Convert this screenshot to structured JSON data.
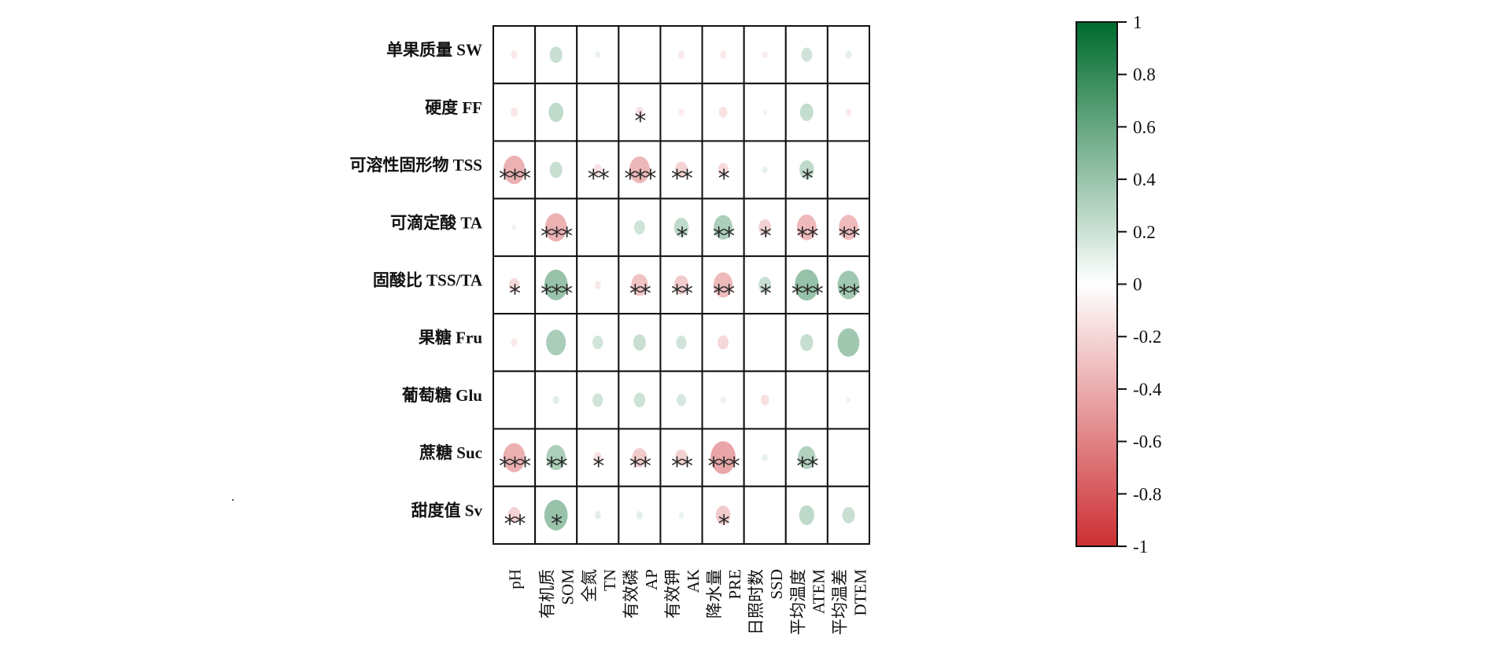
{
  "chart_data": {
    "type": "heatmap",
    "subtype": "correlation-circle-matrix",
    "rows": [
      "单果质量 SW",
      "硬度 FF",
      "可溶性固形物 TSS",
      "可滴定酸 TA",
      "固酸比 TSS/TA",
      "果糖 Fru",
      "葡萄糖 Glu",
      "蔗糖 Suc",
      "甜度值 Sv"
    ],
    "columns": [
      [
        "pH",
        ""
      ],
      [
        "有机质",
        "SOM"
      ],
      [
        "全氮",
        "TN"
      ],
      [
        "有效磷",
        "AP"
      ],
      [
        "有效钾",
        "AK"
      ],
      [
        "降水量",
        "PRE"
      ],
      [
        "日照时数",
        "SSD"
      ],
      [
        "平均温度",
        "ATEM"
      ],
      [
        "平均温差",
        "DTEM"
      ]
    ],
    "values": [
      [
        -0.15,
        0.3,
        0.12,
        -0.05,
        -0.15,
        -0.15,
        -0.13,
        0.26,
        0.15
      ],
      [
        -0.17,
        0.35,
        0.02,
        -0.2,
        -0.13,
        -0.2,
        0.1,
        0.32,
        -0.14
      ],
      [
        -0.52,
        0.3,
        -0.2,
        -0.49,
        -0.3,
        -0.25,
        0.13,
        0.35,
        0.04
      ],
      [
        0.1,
        -0.52,
        0.04,
        0.26,
        0.35,
        0.45,
        -0.3,
        -0.47,
        -0.46
      ],
      [
        -0.25,
        0.56,
        -0.15,
        -0.4,
        -0.35,
        -0.46,
        0.3,
        0.57,
        0.52
      ],
      [
        -0.15,
        0.47,
        0.25,
        0.3,
        0.25,
        -0.26,
        -0.03,
        0.31,
        0.52
      ],
      [
        -0.05,
        0.15,
        0.25,
        0.27,
        0.22,
        0.12,
        -0.2,
        0.05,
        0.1
      ],
      [
        -0.53,
        0.46,
        -0.2,
        -0.35,
        -0.3,
        -0.6,
        0.13,
        0.42,
        0.03
      ],
      [
        -0.3,
        0.56,
        0.15,
        0.15,
        0.12,
        -0.35,
        0.02,
        0.36,
        0.3
      ]
    ],
    "significance": [
      [
        "",
        "",
        "",
        "",
        "",
        "",
        "",
        "",
        ""
      ],
      [
        "",
        "",
        "",
        "*",
        "",
        "",
        "",
        "",
        ""
      ],
      [
        "***",
        "",
        "**",
        "***",
        "**",
        "*",
        "",
        "*",
        ""
      ],
      [
        "",
        "***",
        "",
        "",
        "*",
        "**",
        "*",
        "**",
        "**"
      ],
      [
        "*",
        "***",
        "",
        "**",
        "**",
        "**",
        "*",
        "***",
        "**"
      ],
      [
        "",
        "",
        "",
        "",
        "",
        "",
        "",
        "",
        ""
      ],
      [
        "",
        "",
        "",
        "",
        "",
        "",
        "",
        "",
        ""
      ],
      [
        "***",
        "**",
        "*",
        "**",
        "**",
        "***",
        "",
        "**",
        ""
      ],
      [
        "**",
        "*",
        "",
        "",
        "",
        "*",
        "",
        "",
        ""
      ]
    ],
    "colorbar": {
      "range": [
        -1,
        1
      ],
      "ticks": [
        "1",
        "0.8",
        "0.6",
        "0.4",
        "0.2",
        "0",
        "-0.2",
        "-0.4",
        "-0.6",
        "-0.8",
        "-1"
      ],
      "tick_values": [
        1,
        0.8,
        0.6,
        0.4,
        0.2,
        0,
        -0.2,
        -0.4,
        -0.6,
        -0.8,
        -1
      ],
      "positive_color": "#006b2d",
      "zero_color": "#ffffff",
      "negative_color": "#cc2f33"
    }
  }
}
